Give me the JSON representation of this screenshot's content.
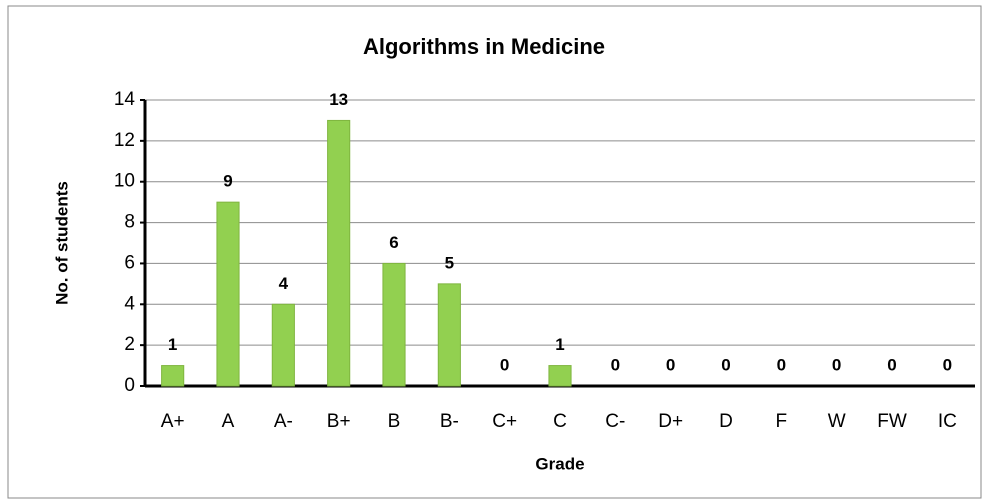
{
  "chart_data": {
    "type": "bar",
    "title": "Algorithms in Medicine",
    "x_label": "Grade",
    "y_label": "No. of students",
    "categories": [
      "A+",
      "A",
      "A-",
      "B+",
      "B",
      "B-",
      "C+",
      "C",
      "C-",
      "D+",
      "D",
      "F",
      "W",
      "FW",
      "IC"
    ],
    "values": [
      1,
      9,
      4,
      13,
      6,
      5,
      0,
      1,
      0,
      0,
      0,
      0,
      0,
      0,
      0
    ],
    "color": "#92d050",
    "ylim": [
      0,
      14
    ],
    "yticks": [
      0,
      2,
      4,
      6,
      8,
      10,
      12,
      14
    ],
    "grid": true,
    "data_labels": true
  }
}
